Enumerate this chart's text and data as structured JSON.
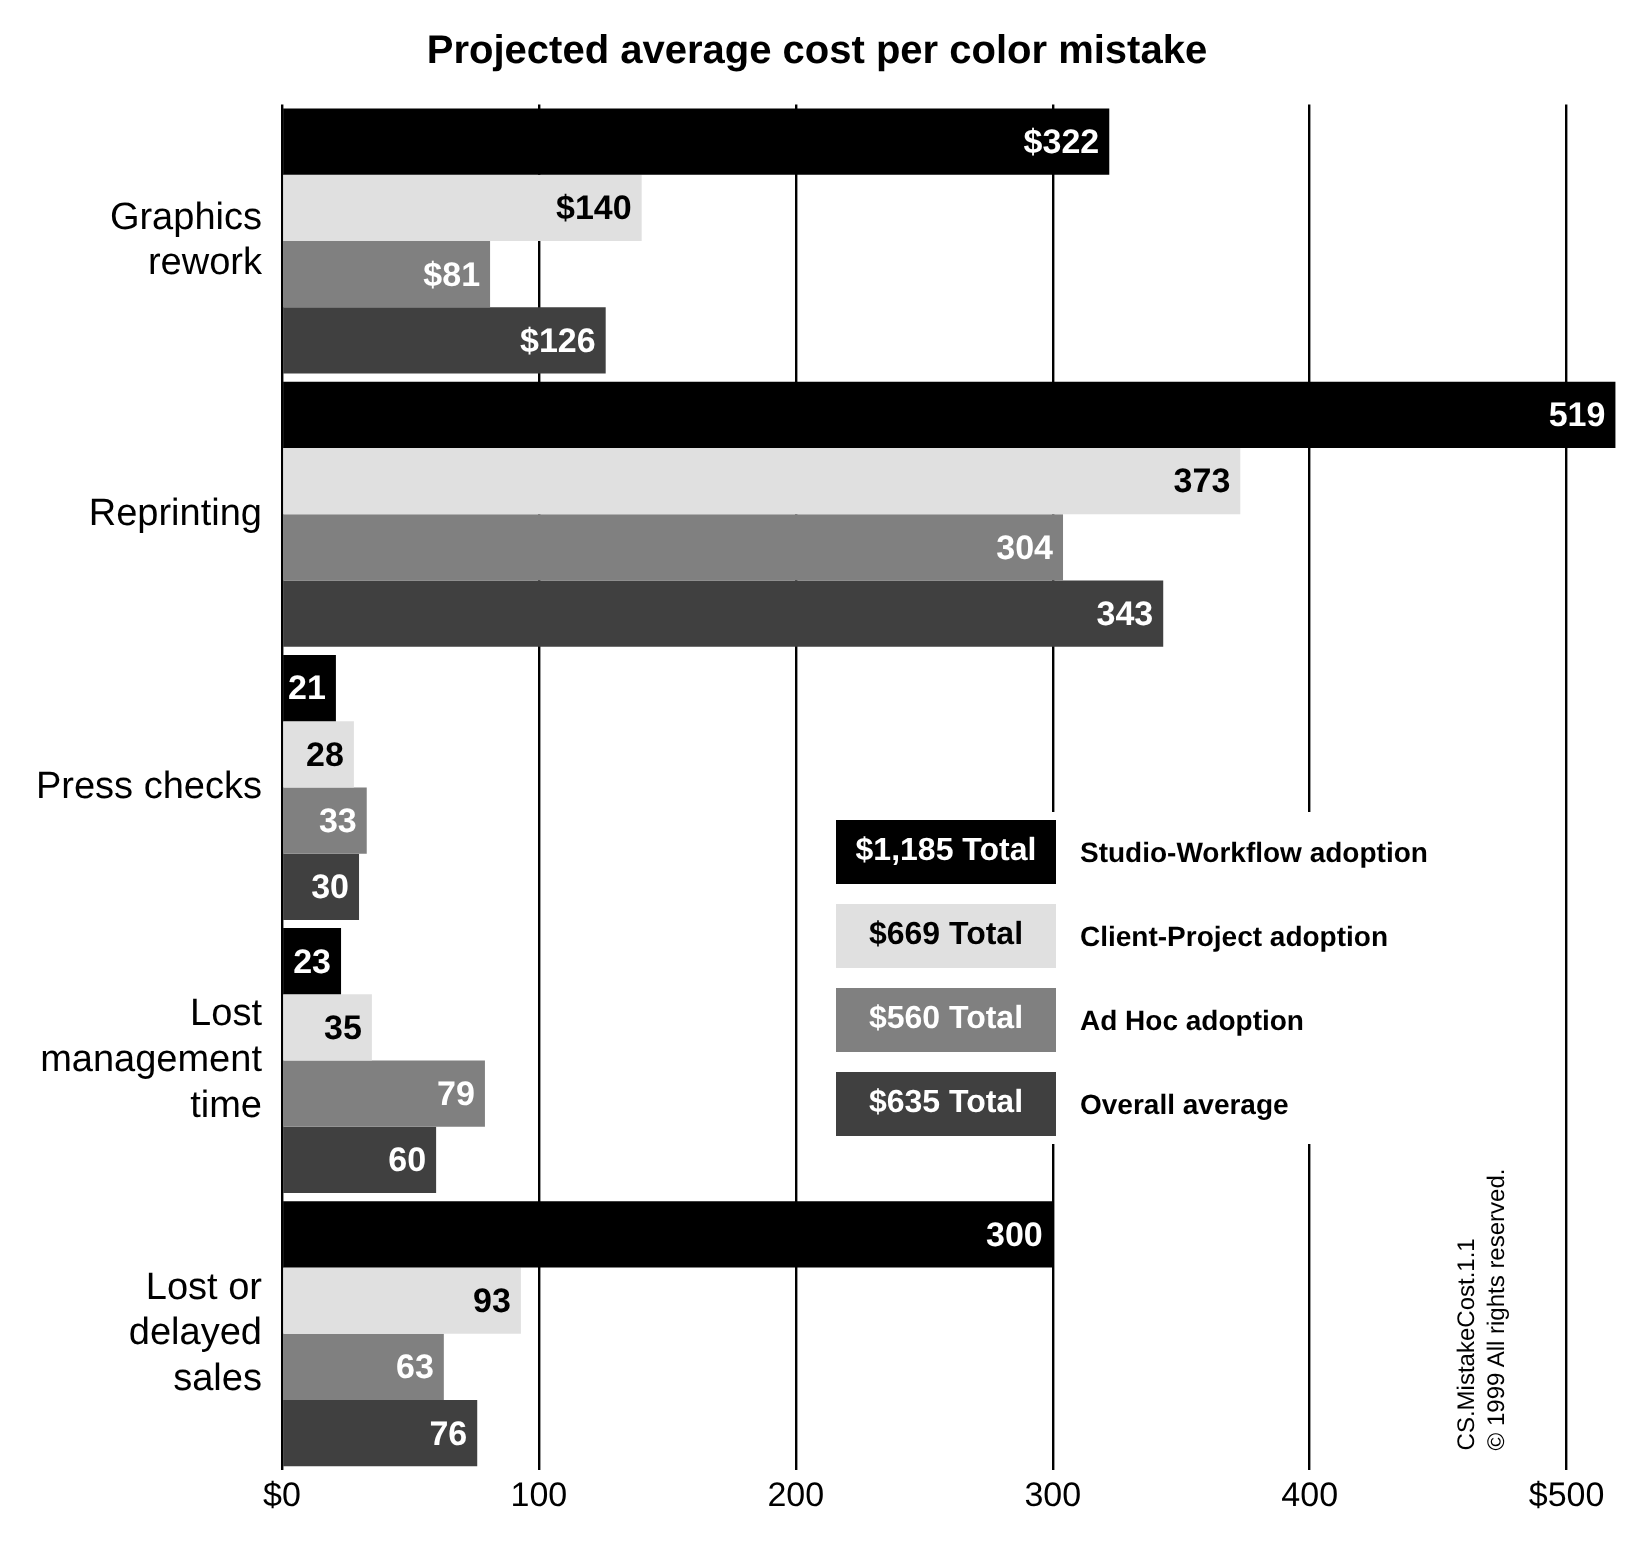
{
  "chart_data": {
    "type": "bar",
    "orientation": "horizontal",
    "title": "Projected average cost per color mistake",
    "categories": [
      "Graphics rework",
      "Reprinting",
      "Press checks",
      "Lost management time",
      "Lost or delayed sales"
    ],
    "series": [
      {
        "name": "Studio-Workflow adoption",
        "color": "#000000",
        "values": [
          322,
          519,
          21,
          23,
          300
        ],
        "value_labels": [
          "$322",
          "519",
          "21",
          "23",
          "300"
        ]
      },
      {
        "name": "Client-Project adoption",
        "color": "#e0e0e0",
        "values": [
          140,
          373,
          28,
          35,
          93
        ],
        "value_labels": [
          "$140",
          "373",
          "28",
          "35",
          "93"
        ]
      },
      {
        "name": "Ad Hoc adoption",
        "color": "#808080",
        "values": [
          81,
          304,
          33,
          79,
          63
        ],
        "value_labels": [
          "$81",
          "304",
          "33",
          "79",
          "63"
        ]
      },
      {
        "name": "Overall average",
        "color": "#404040",
        "values": [
          126,
          343,
          30,
          60,
          76
        ],
        "value_labels": [
          "$126",
          "343",
          "30",
          "60",
          "76"
        ]
      }
    ],
    "xlim": [
      0,
      520
    ],
    "xticks": [
      {
        "value": 0,
        "label": "$0"
      },
      100,
      200,
      300,
      400,
      {
        "value": 500,
        "label": "$500"
      }
    ],
    "grid": "x",
    "legend": "right",
    "annotations": [
      "$1,185 Total",
      "$669 Total",
      "$560 Total",
      "$635 Total",
      "CS.MistakeCost.1.1",
      "© 1999 All rights reserved."
    ]
  }
}
